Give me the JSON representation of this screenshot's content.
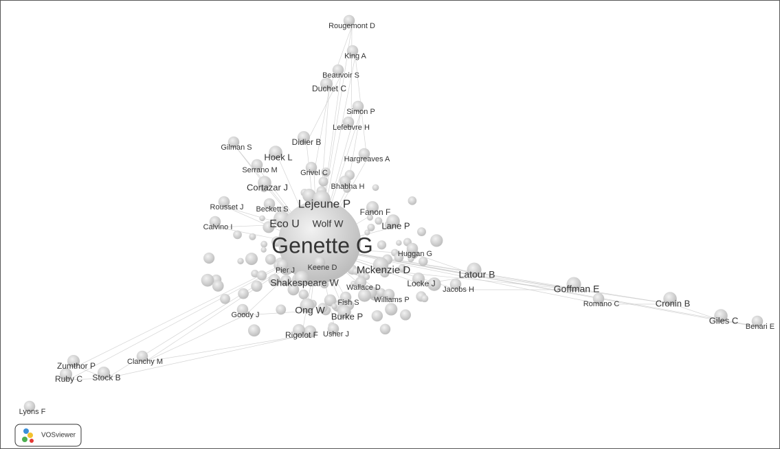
{
  "nodes": [
    {
      "label": "Rougemont D"
    },
    {
      "label": "King A"
    },
    {
      "label": "Beauvoir S"
    },
    {
      "label": "Duchet C"
    },
    {
      "label": "Simon P"
    },
    {
      "label": "Lefebvre H"
    },
    {
      "label": "Didier B"
    },
    {
      "label": "Gilman S"
    },
    {
      "label": "Hoek L"
    },
    {
      "label": "Hargreaves A"
    },
    {
      "label": "Serrano M"
    },
    {
      "label": "Grivel C"
    },
    {
      "label": "Cortazar J"
    },
    {
      "label": "Bhabha H"
    },
    {
      "label": "Rousset J"
    },
    {
      "label": "Beckett S"
    },
    {
      "label": "Lejeune P"
    },
    {
      "label": "Fanon F"
    },
    {
      "label": "Calvino I"
    },
    {
      "label": "Eco U"
    },
    {
      "label": "Wolf W"
    },
    {
      "label": "Lane P"
    },
    {
      "label": "Genette G"
    },
    {
      "label": "Huggan G"
    },
    {
      "label": "Pier J"
    },
    {
      "label": "Keene D"
    },
    {
      "label": "Mckenzie D"
    },
    {
      "label": "Latour B"
    },
    {
      "label": "Shakespeare W"
    },
    {
      "label": "Wallace D"
    },
    {
      "label": "Locke J"
    },
    {
      "label": "Jacobs H"
    },
    {
      "label": "Goffman E"
    },
    {
      "label": "Romano C"
    },
    {
      "label": "Cronin B"
    },
    {
      "label": "Fish S"
    },
    {
      "label": "Williams P"
    },
    {
      "label": "Ong W"
    },
    {
      "label": "Goody J"
    },
    {
      "label": "Burke P"
    },
    {
      "label": "Giles C"
    },
    {
      "label": "Benari E"
    },
    {
      "label": "Rigolot F"
    },
    {
      "label": "Usher J"
    },
    {
      "label": "Zumthor P"
    },
    {
      "label": "Clanchy M"
    },
    {
      "label": "Ruby C"
    },
    {
      "label": "Stock B"
    },
    {
      "label": "Lyons F"
    }
  ],
  "logo": {
    "text": "VOSviewer"
  }
}
